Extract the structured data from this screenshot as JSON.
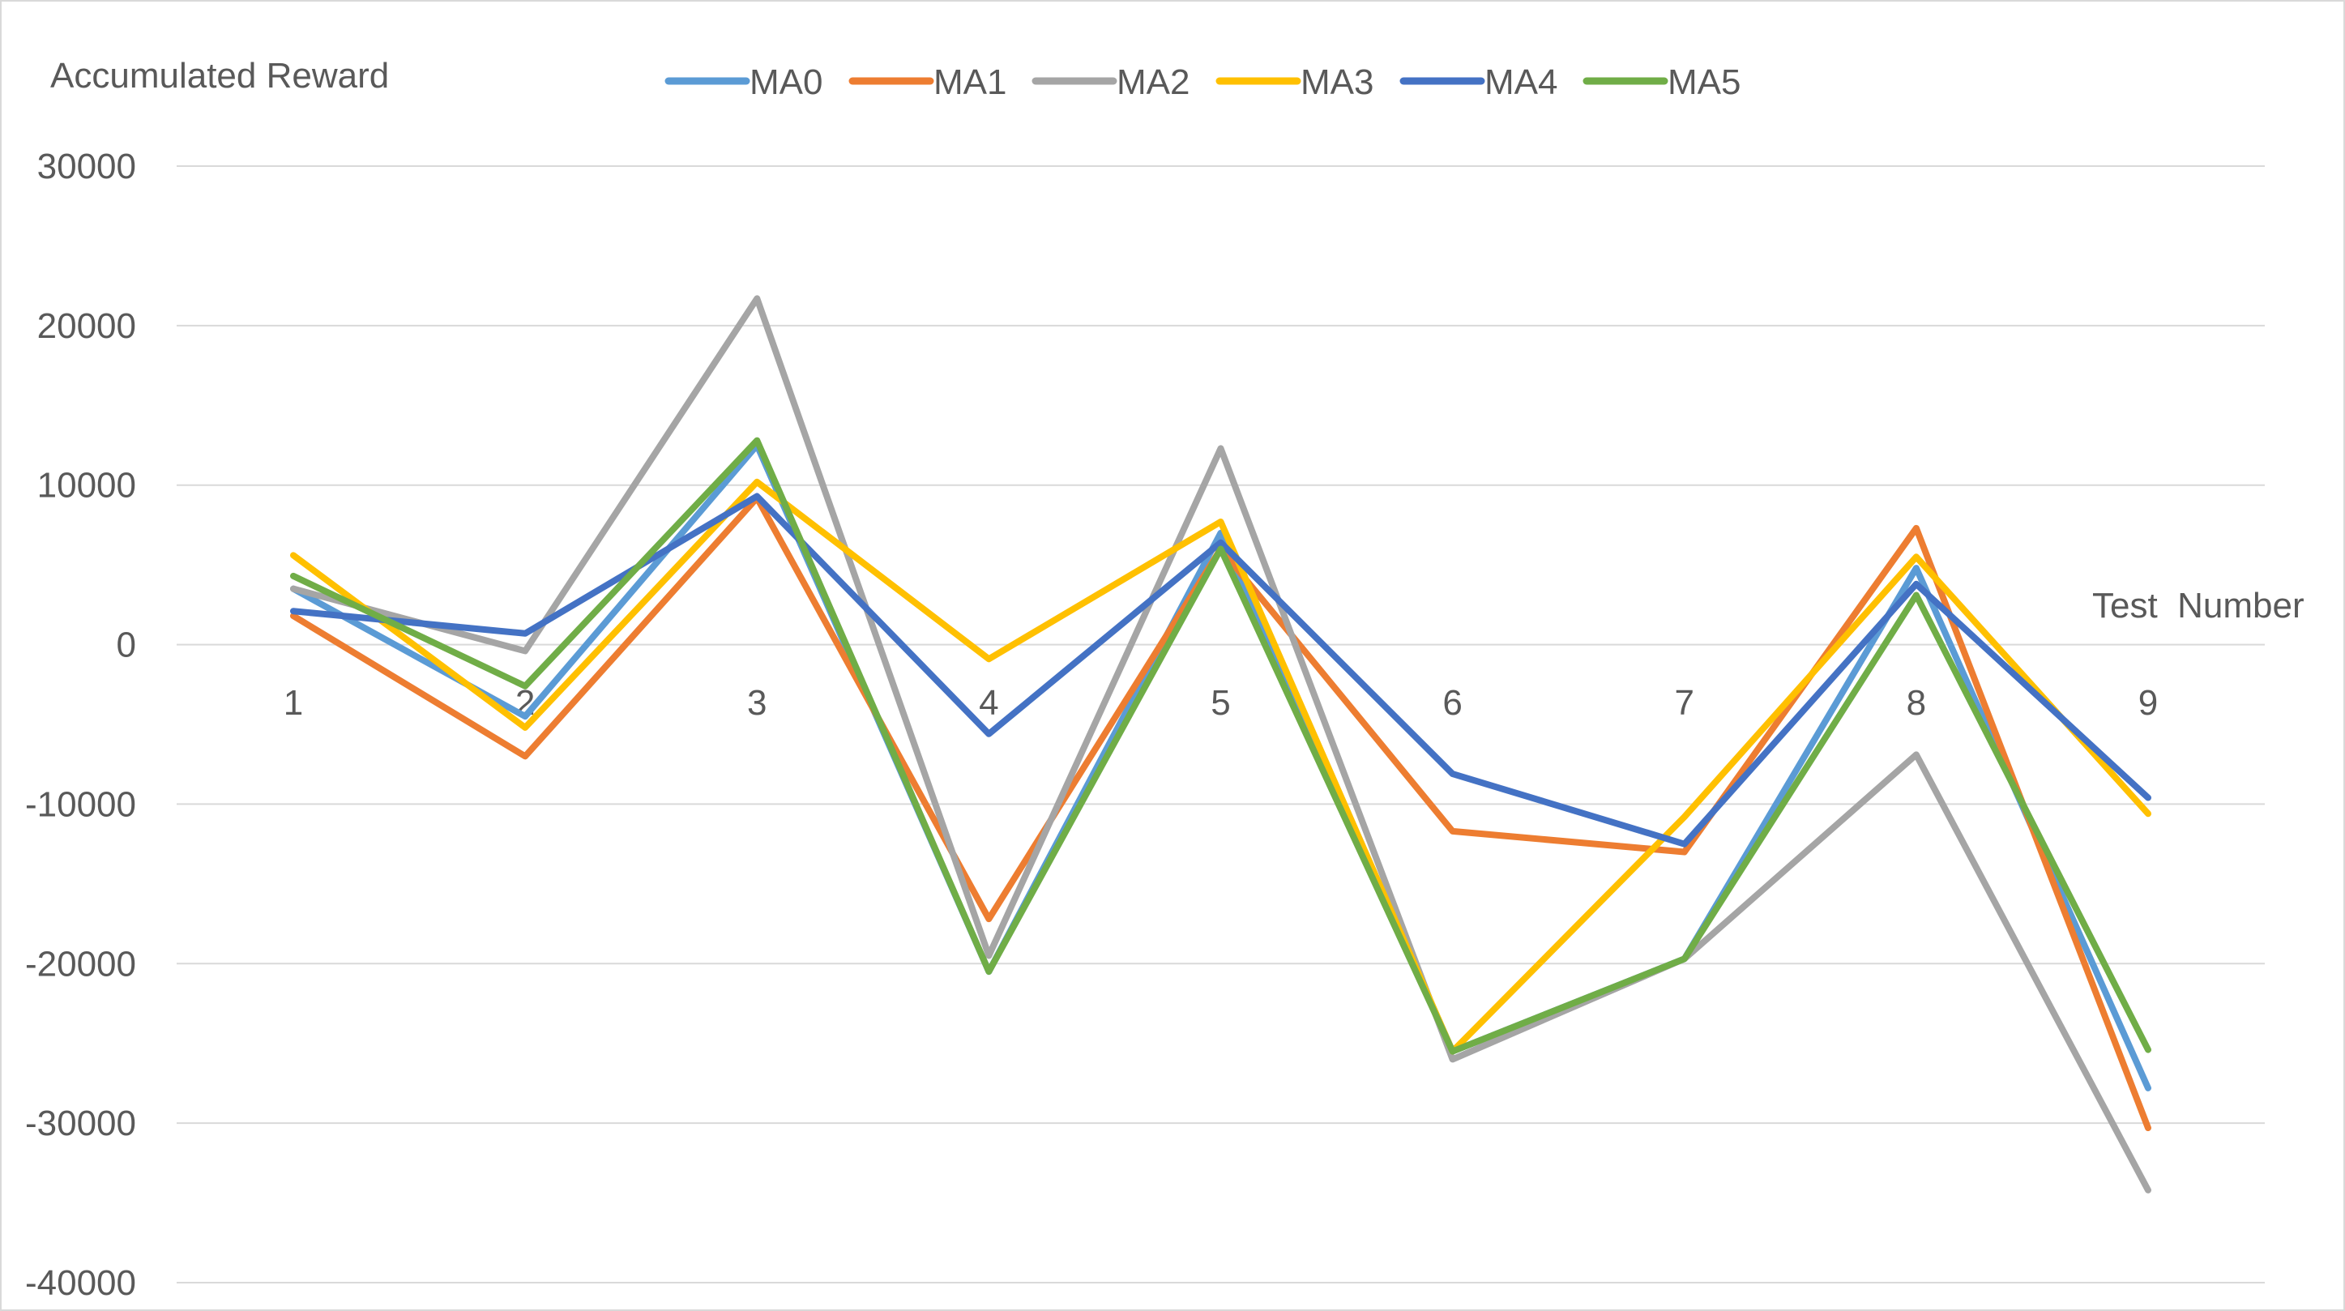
{
  "chart_data": {
    "type": "line",
    "title": "",
    "ylabel": "Accumulated Reward",
    "xlabel": "Test  Number",
    "categories": [
      "1",
      "2",
      "3",
      "4",
      "5",
      "6",
      "7",
      "8",
      "9"
    ],
    "ylim": [
      -40000,
      30000
    ],
    "yticks": [
      30000,
      20000,
      10000,
      0,
      -10000,
      -20000,
      -30000,
      -40000
    ],
    "grid": true,
    "legend_position": "top",
    "series": [
      {
        "name": "MA0",
        "color": "#5B9BD5",
        "values": [
          3500,
          -4500,
          12500,
          -20500,
          7000,
          -25500,
          -19700,
          4800,
          -27800
        ]
      },
      {
        "name": "MA1",
        "color": "#ED7D31",
        "values": [
          1800,
          -7000,
          9200,
          -17200,
          6000,
          -11700,
          -13000,
          7300,
          -30300
        ]
      },
      {
        "name": "MA2",
        "color": "#A5A5A5",
        "values": [
          3500,
          -400,
          21700,
          -19500,
          12300,
          -26000,
          -19700,
          -6900,
          -34200
        ]
      },
      {
        "name": "MA3",
        "color": "#FFC000",
        "values": [
          5600,
          -5200,
          10200,
          -900,
          7700,
          -25500,
          -10800,
          5500,
          -10600
        ]
      },
      {
        "name": "MA4",
        "color": "#4472C4",
        "values": [
          2100,
          700,
          9300,
          -5600,
          6400,
          -8100,
          -12500,
          3800,
          -9600
        ]
      },
      {
        "name": "MA5",
        "color": "#70AD47",
        "values": [
          4300,
          -2600,
          12800,
          -20500,
          6000,
          -25500,
          -19700,
          3100,
          -25400
        ]
      }
    ]
  }
}
